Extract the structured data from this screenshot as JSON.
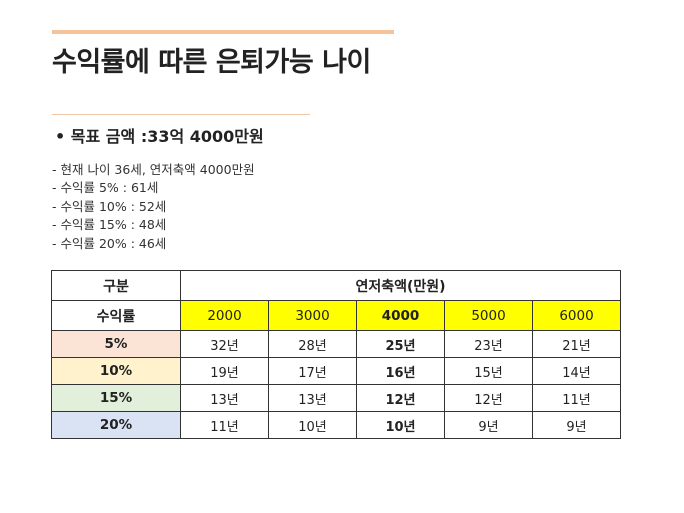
{
  "title": "수익률에 따른 은퇴가능 나이",
  "goal": "• 목표 금액 :33억 4000만원",
  "notes": [
    "- 현재 나이 36세, 연저축액 4000만원",
    "- 수익률 5% : 61세",
    "- 수익률 10% : 52세",
    "- 수익률 15% : 48세",
    "- 수익률 20% : 46세"
  ],
  "table": {
    "corner_label": "구분",
    "group_label": "연저축액(만원)",
    "rate_label": "수익률",
    "amounts": [
      "2000",
      "3000",
      "4000",
      "5000",
      "6000"
    ],
    "rows": [
      {
        "rate": "5%",
        "values": [
          "32년",
          "28년",
          "25년",
          "23년",
          "21년"
        ]
      },
      {
        "rate": "10%",
        "values": [
          "19년",
          "17년",
          "16년",
          "15년",
          "14년"
        ]
      },
      {
        "rate": "15%",
        "values": [
          "13년",
          "13년",
          "12년",
          "12년",
          "11년"
        ]
      },
      {
        "rate": "20%",
        "values": [
          "11년",
          "10년",
          "10년",
          "9년",
          "9년"
        ]
      }
    ],
    "row_colors": [
      "#fbe4d6",
      "#fff2cc",
      "#e2efda",
      "#dae3f3"
    ],
    "highlight_color": "#ffff00"
  }
}
